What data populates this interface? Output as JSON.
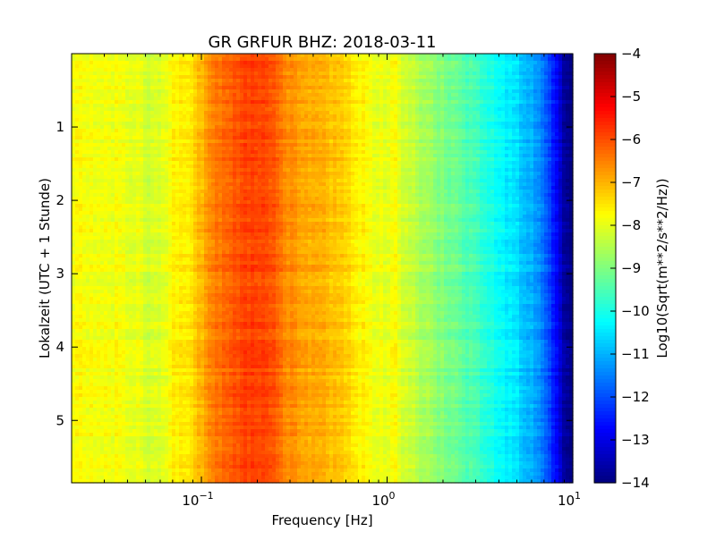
{
  "chart_data": {
    "type": "heatmap",
    "title": "GR GRFUR BHZ: 2018-03-11",
    "xlabel": "Frequency [Hz]",
    "ylabel": "Lokalzeit (UTC + 1 Stunde)",
    "colorbar_label": "Log10(Sqrt(m**2/s**2/Hz))",
    "x_scale": "log",
    "xlim": [
      0.02,
      10
    ],
    "x_ticks": [
      {
        "value": 0.1,
        "base": "10",
        "exp": "−1"
      },
      {
        "value": 1,
        "base": "10",
        "exp": "0"
      },
      {
        "value": 10,
        "base": "10",
        "exp": "1"
      }
    ],
    "ylim": [
      5.85,
      0
    ],
    "y_inverted": true,
    "y_ticks": [
      "1",
      "2",
      "3",
      "4",
      "5"
    ],
    "colorbar_range": [
      -14,
      -4
    ],
    "colorbar_ticks": [
      "−4",
      "−5",
      "−6",
      "−7",
      "−8",
      "−9",
      "−10",
      "−11",
      "−12",
      "−13",
      "−14"
    ],
    "colormap": "jet",
    "spectrum_profile": {
      "frequency": [
        0.02,
        0.03,
        0.04,
        0.055,
        0.07,
        0.09,
        0.1,
        0.12,
        0.15,
        0.2,
        0.25,
        0.3,
        0.4,
        0.5,
        0.6,
        0.7,
        0.8,
        1.0,
        1.1,
        1.2,
        1.5,
        2.0,
        2.5,
        3.0,
        4.0,
        5.0,
        6.0,
        7.0,
        8.0,
        9.0,
        10.0
      ],
      "log10_psd": [
        -7.8,
        -7.8,
        -7.9,
        -8.2,
        -7.7,
        -7.5,
        -7.0,
        -6.4,
        -6.0,
        -5.8,
        -6.2,
        -6.6,
        -6.9,
        -7.1,
        -7.3,
        -7.6,
        -7.8,
        -8.0,
        -7.6,
        -8.2,
        -8.5,
        -9.0,
        -9.3,
        -9.6,
        -10.2,
        -10.6,
        -11.0,
        -11.6,
        -12.6,
        -13.6,
        -14.0
      ]
    }
  }
}
